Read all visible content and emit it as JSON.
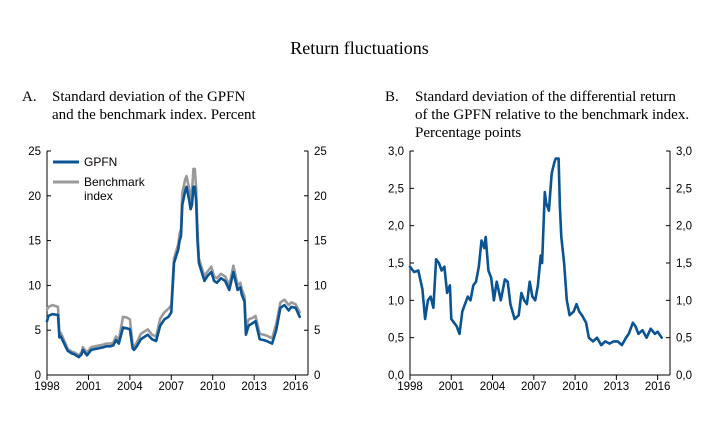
{
  "title": "Return fluctuations",
  "panels": {
    "a": {
      "letter": "A.",
      "title": "Standard deviation of the GPFN\nand the benchmark index. Percent"
    },
    "b": {
      "letter": "B.",
      "title": "Standard deviation of the differential return\nof the GPFN relative to the benchmark index.\nPercentage points"
    }
  },
  "colors": {
    "gpfn": "#0a5494",
    "benchmark": "#9a9a9a",
    "axis": "#000000"
  },
  "chart_data": [
    {
      "type": "line",
      "title": "Standard deviation of the GPFN and the benchmark index. Percent",
      "xlim": [
        1998,
        2016.9
      ],
      "ylim": [
        0,
        25
      ],
      "x_ticks": [
        1998,
        2001,
        2004,
        2007,
        2010,
        2013,
        2016
      ],
      "y_ticks": [
        0,
        5,
        10,
        15,
        20,
        25
      ],
      "y_tick_labels": [
        "0",
        "5",
        "10",
        "15",
        "20",
        "25"
      ],
      "right_axis": true,
      "legend": "top-left",
      "series": [
        {
          "name": "GPFN",
          "color": "#0a5494",
          "x": [
            1998.0,
            1998.1,
            1998.4,
            1998.8,
            1998.9,
            1999.0,
            1999.4,
            1999.5,
            1999.8,
            2000.0,
            2000.3,
            2000.5,
            2000.6,
            2000.9,
            2001.2,
            2001.5,
            2001.8,
            2002.1,
            2002.3,
            2002.6,
            2002.8,
            2003.0,
            2003.2,
            2003.5,
            2003.8,
            2004.0,
            2004.2,
            2004.3,
            2004.5,
            2004.8,
            2005.0,
            2005.3,
            2005.6,
            2005.9,
            2006.2,
            2006.5,
            2006.8,
            2007.0,
            2007.2,
            2007.5,
            2007.6,
            2007.7,
            2007.8,
            2008.0,
            2008.1,
            2008.3,
            2008.4,
            2008.5,
            2008.6,
            2008.7,
            2008.8,
            2008.9,
            2009.0,
            2009.2,
            2009.4,
            2009.6,
            2009.9,
            2010.1,
            2010.3,
            2010.6,
            2010.9,
            2011.2,
            2011.5,
            2011.8,
            2012.0,
            2012.1,
            2012.3,
            2012.4,
            2012.6,
            2012.9,
            2013.1,
            2013.4,
            2013.7,
            2013.9,
            2014.3,
            2014.6,
            2014.9,
            2015.2,
            2015.5,
            2015.7,
            2016.0,
            2016.3
          ],
          "y": [
            6.0,
            6.6,
            6.8,
            6.7,
            4.2,
            4.3,
            3.0,
            2.7,
            2.4,
            2.3,
            2.0,
            2.3,
            2.8,
            2.2,
            2.8,
            2.9,
            3.0,
            3.1,
            3.2,
            3.2,
            3.3,
            3.9,
            3.5,
            5.3,
            5.2,
            5.1,
            3.0,
            2.8,
            3.2,
            4.0,
            4.2,
            4.5,
            4.0,
            3.8,
            5.5,
            6.2,
            6.5,
            7.0,
            12.5,
            14.0,
            15.0,
            15.5,
            19.0,
            20.5,
            21.0,
            19.5,
            18.5,
            19.0,
            21.0,
            21.0,
            19.5,
            15.0,
            12.5,
            11.5,
            10.5,
            11.0,
            11.5,
            10.5,
            10.3,
            10.8,
            10.5,
            9.5,
            11.5,
            9.5,
            9.8,
            9.0,
            8.2,
            4.5,
            5.5,
            5.8,
            6.0,
            4.0,
            3.9,
            3.8,
            3.5,
            5.0,
            7.5,
            7.8,
            7.2,
            7.6,
            7.5,
            6.5
          ]
        },
        {
          "name": "Benchmark index",
          "color": "#9a9a9a",
          "x": [
            1998.0,
            1998.1,
            1998.4,
            1998.8,
            1998.9,
            1999.0,
            1999.4,
            1999.5,
            1999.8,
            2000.0,
            2000.3,
            2000.5,
            2000.6,
            2000.9,
            2001.2,
            2001.5,
            2001.8,
            2002.1,
            2002.3,
            2002.6,
            2002.8,
            2003.0,
            2003.2,
            2003.5,
            2003.8,
            2004.0,
            2004.2,
            2004.3,
            2004.5,
            2004.8,
            2005.0,
            2005.3,
            2005.6,
            2005.9,
            2006.2,
            2006.5,
            2006.8,
            2007.0,
            2007.2,
            2007.5,
            2007.6,
            2007.7,
            2007.8,
            2008.0,
            2008.1,
            2008.3,
            2008.4,
            2008.5,
            2008.6,
            2008.7,
            2008.8,
            2008.9,
            2009.0,
            2009.2,
            2009.4,
            2009.6,
            2009.9,
            2010.1,
            2010.3,
            2010.6,
            2010.9,
            2011.2,
            2011.5,
            2011.8,
            2012.0,
            2012.1,
            2012.3,
            2012.4,
            2012.6,
            2012.9,
            2013.1,
            2013.4,
            2013.7,
            2013.9,
            2014.3,
            2014.6,
            2014.9,
            2015.2,
            2015.5,
            2015.7,
            2016.0,
            2016.3
          ],
          "y": [
            7.3,
            7.6,
            7.8,
            7.6,
            4.6,
            4.7,
            3.3,
            2.9,
            2.6,
            2.5,
            2.2,
            2.5,
            3.1,
            2.5,
            3.1,
            3.2,
            3.3,
            3.4,
            3.5,
            3.5,
            3.6,
            4.3,
            3.9,
            6.5,
            6.4,
            6.2,
            3.4,
            3.2,
            3.6,
            4.6,
            4.8,
            5.1,
            4.5,
            4.3,
            6.3,
            7.0,
            7.4,
            7.8,
            13.0,
            14.6,
            15.8,
            16.3,
            20.3,
            21.8,
            22.2,
            20.8,
            19.6,
            20.4,
            23.0,
            23.0,
            21.0,
            16.2,
            13.0,
            12.0,
            11.0,
            11.5,
            12.1,
            11.0,
            10.8,
            11.3,
            11.0,
            10.0,
            12.2,
            10.0,
            10.3,
            9.6,
            8.8,
            5.2,
            6.2,
            6.4,
            6.6,
            4.6,
            4.5,
            4.4,
            4.1,
            5.7,
            8.1,
            8.4,
            7.8,
            8.1,
            7.9,
            7.0
          ]
        }
      ]
    },
    {
      "type": "line",
      "title": "Standard deviation of the differential return of the GPFN relative to the benchmark index. Percentage points",
      "xlim": [
        1998,
        2016.9
      ],
      "ylim": [
        0,
        3
      ],
      "x_ticks": [
        1998,
        2001,
        2004,
        2007,
        2010,
        2013,
        2016
      ],
      "y_ticks": [
        0,
        0.5,
        1.0,
        1.5,
        2.0,
        2.5,
        3.0
      ],
      "y_tick_labels": [
        "0,0",
        "0,5",
        "1,0",
        "1,5",
        "2,0",
        "2,5",
        "3,0"
      ],
      "right_axis": true,
      "series": [
        {
          "color": "#0a5494",
          "x": [
            1998.0,
            1998.3,
            1998.6,
            1998.9,
            1999.1,
            1999.3,
            1999.5,
            1999.7,
            1999.9,
            2000.1,
            2000.3,
            2000.5,
            2000.7,
            2000.9,
            2001.0,
            2001.2,
            2001.4,
            2001.6,
            2001.8,
            2002.0,
            2002.2,
            2002.4,
            2002.6,
            2002.8,
            2003.0,
            2003.2,
            2003.4,
            2003.5,
            2003.7,
            2003.9,
            2004.1,
            2004.3,
            2004.6,
            2004.9,
            2005.1,
            2005.3,
            2005.6,
            2005.9,
            2006.1,
            2006.3,
            2006.5,
            2006.7,
            2006.9,
            2007.1,
            2007.3,
            2007.5,
            2007.6,
            2007.8,
            2007.9,
            2008.1,
            2008.3,
            2008.5,
            2008.6,
            2008.8,
            2008.9,
            2009.0,
            2009.2,
            2009.4,
            2009.6,
            2009.9,
            2010.1,
            2010.3,
            2010.5,
            2010.8,
            2011.0,
            2011.3,
            2011.6,
            2011.9,
            2012.2,
            2012.5,
            2012.8,
            2013.1,
            2013.4,
            2013.7,
            2013.9,
            2014.2,
            2014.4,
            2014.6,
            2014.9,
            2015.2,
            2015.5,
            2015.8,
            2016.0,
            2016.3
          ],
          "y": [
            1.45,
            1.38,
            1.4,
            1.15,
            0.75,
            1.0,
            1.05,
            0.9,
            1.55,
            1.5,
            1.4,
            1.45,
            1.1,
            1.2,
            0.75,
            0.7,
            0.65,
            0.55,
            0.85,
            0.95,
            1.05,
            1.0,
            1.2,
            1.25,
            1.45,
            1.8,
            1.7,
            1.85,
            1.4,
            1.3,
            1.0,
            1.25,
            1.0,
            1.28,
            1.25,
            0.95,
            0.75,
            0.8,
            1.1,
            1.0,
            0.95,
            1.25,
            1.05,
            1.0,
            1.2,
            1.6,
            1.5,
            2.45,
            2.3,
            2.2,
            2.7,
            2.85,
            2.9,
            2.9,
            2.25,
            1.85,
            1.5,
            1.0,
            0.8,
            0.85,
            0.95,
            0.85,
            0.8,
            0.7,
            0.5,
            0.45,
            0.5,
            0.4,
            0.45,
            0.42,
            0.45,
            0.45,
            0.4,
            0.5,
            0.55,
            0.7,
            0.65,
            0.55,
            0.6,
            0.5,
            0.62,
            0.55,
            0.58,
            0.5
          ]
        }
      ]
    }
  ]
}
